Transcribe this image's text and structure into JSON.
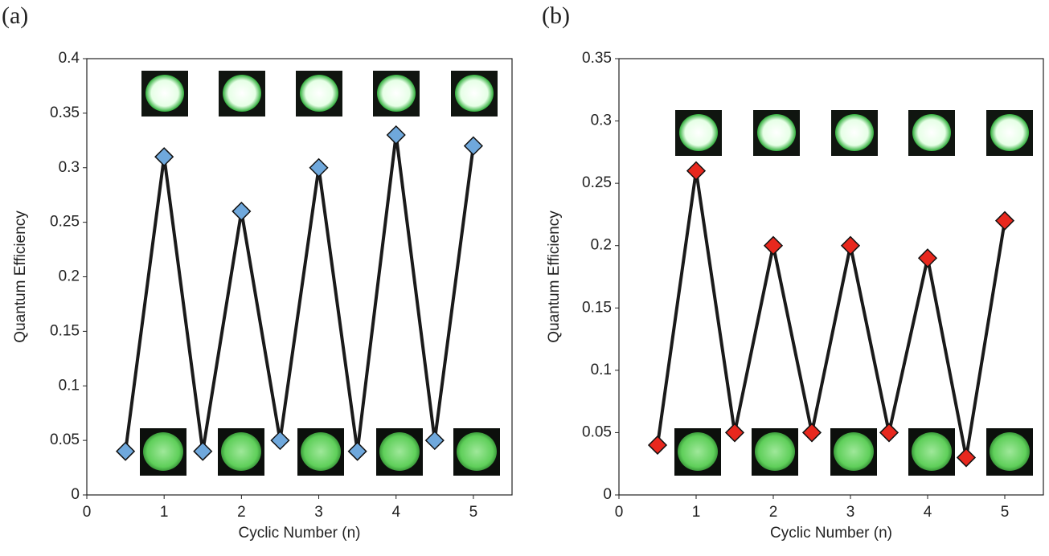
{
  "chart_data": [
    {
      "type": "line",
      "panel_label": "(a)",
      "xlabel": "Cyclic Number (n)",
      "ylabel": "Quantum Efficiency",
      "x": [
        0.5,
        1,
        1.5,
        2,
        2.5,
        3,
        3.5,
        4,
        4.5,
        5
      ],
      "series": [
        {
          "color": "#6fa8dc",
          "values": [
            0.04,
            0.31,
            0.04,
            0.26,
            0.05,
            0.3,
            0.04,
            0.33,
            0.05,
            0.32
          ]
        }
      ],
      "xlim": [
        0,
        5.5
      ],
      "xticks": [
        0,
        1,
        2,
        3,
        4,
        5
      ],
      "ylim": [
        0,
        0.4
      ],
      "yticks": [
        0,
        0.05,
        0.1,
        0.15,
        0.2,
        0.25,
        0.3,
        0.35,
        0.4
      ]
    },
    {
      "type": "line",
      "panel_label": "(b)",
      "xlabel": "Cyclic Number (n)",
      "ylabel": "Quantum Efficiency",
      "x": [
        0.5,
        1,
        1.5,
        2,
        2.5,
        3,
        3.5,
        4,
        4.5,
        5
      ],
      "series": [
        {
          "color": "#e8281e",
          "values": [
            0.04,
            0.26,
            0.05,
            0.2,
            0.05,
            0.2,
            0.05,
            0.19,
            0.03,
            0.22
          ]
        }
      ],
      "xlim": [
        0,
        5.5
      ],
      "xticks": [
        0,
        1,
        2,
        3,
        4,
        5
      ],
      "ylim": [
        0,
        0.35
      ],
      "yticks": [
        0,
        0.05,
        0.1,
        0.15,
        0.2,
        0.25,
        0.3,
        0.35
      ]
    }
  ]
}
